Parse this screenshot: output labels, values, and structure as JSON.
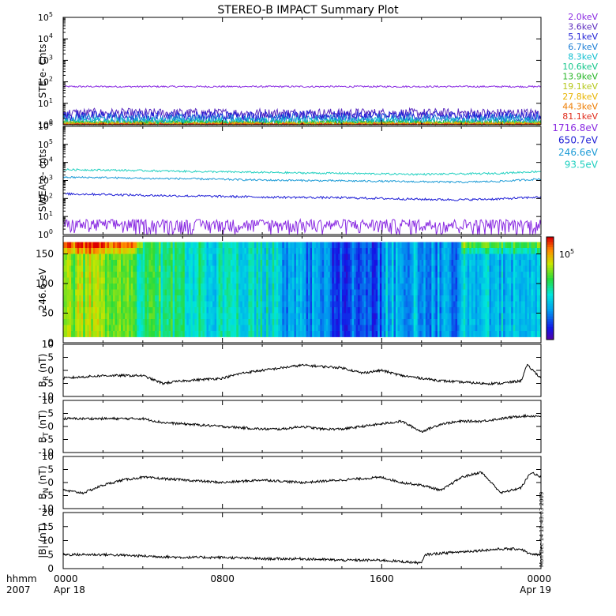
{
  "title": "STEREO-B IMPACT Summary Plot",
  "time_axis": {
    "row_label": "hhmm",
    "year": "2007",
    "ticks": [
      {
        "hour": 0,
        "hhmm": "0000",
        "date": "Apr 18"
      },
      {
        "hour": 8,
        "hhmm": "0800",
        "date": ""
      },
      {
        "hour": 16,
        "hhmm": "1600",
        "date": ""
      },
      {
        "hour": 24,
        "hhmm": "0000",
        "date": "Apr 19"
      }
    ]
  },
  "side_stamp": "Mon Dec 14 12:43:03 2009",
  "chart_data": [
    {
      "id": "ste",
      "type": "line",
      "ylabel": "STE e- Cnts",
      "yscale": "log",
      "ylim_exp": [
        0,
        5
      ],
      "ytick_exps": [
        0,
        1,
        2,
        3,
        4,
        5
      ],
      "series": [
        {
          "name": "2.0keV",
          "color": "#8a2be2",
          "level": 60,
          "noise": 0.04
        },
        {
          "name": "3.6keV",
          "color": "#5b2bbf",
          "level": 3.5,
          "noise": 0.22
        },
        {
          "name": "5.1keV",
          "color": "#1f1fd6",
          "level": 2.5,
          "noise": 0.25
        },
        {
          "name": "6.7keV",
          "color": "#1c7ed6",
          "level": 1.8,
          "noise": 0.25
        },
        {
          "name": "8.3keV",
          "color": "#10bfd0",
          "level": 1.4,
          "noise": 0.2
        },
        {
          "name": "10.6keV",
          "color": "#13c68a",
          "level": 1.2,
          "noise": 0.15
        },
        {
          "name": "13.9keV",
          "color": "#27b627",
          "level": 1.15,
          "noise": 0.12
        },
        {
          "name": "19.1keV",
          "color": "#b5c81a",
          "level": 1.1,
          "noise": 0.1
        },
        {
          "name": "27.8keV",
          "color": "#e8b400",
          "level": 1.1,
          "noise": 0.1
        },
        {
          "name": "44.3keV",
          "color": "#ee7c00",
          "level": 1.05,
          "noise": 0.08
        },
        {
          "name": "81.1keV",
          "color": "#e02a1a",
          "level": 1.02,
          "noise": 0.05
        }
      ]
    },
    {
      "id": "swea",
      "type": "line",
      "ylabel": "SWEA e- cnts",
      "yscale": "log",
      "ylim_exp": [
        0,
        6
      ],
      "ytick_exps": [
        0,
        1,
        2,
        3,
        4,
        5,
        6
      ],
      "series": [
        {
          "name": "1716.8eV",
          "color": "#8a2be2",
          "hours": [
            0,
            24
          ],
          "values": [
            2.5,
            2.5
          ],
          "noise": 0.5
        },
        {
          "name": "650.7eV",
          "color": "#1f1fd6",
          "hours": [
            0,
            2,
            4,
            6,
            8,
            10,
            12,
            14,
            16,
            18,
            20,
            22,
            24
          ],
          "values": [
            180,
            170,
            150,
            140,
            130,
            120,
            115,
            110,
            100,
            90,
            85,
            95,
            120
          ],
          "noise": 0.06
        },
        {
          "name": "246.6eV",
          "color": "#1c9bd6",
          "hours": [
            0,
            2,
            4,
            6,
            8,
            10,
            12,
            14,
            16,
            18,
            20,
            22,
            24
          ],
          "values": [
            1500,
            1450,
            1300,
            1250,
            1150,
            1050,
            1000,
            950,
            900,
            850,
            800,
            900,
            1200
          ],
          "noise": 0.05
        },
        {
          "name": "93.5eV",
          "color": "#20d0c0",
          "hours": [
            0,
            2,
            4,
            6,
            8,
            10,
            12,
            14,
            16,
            18,
            20,
            22,
            24
          ],
          "values": [
            4000,
            3800,
            3500,
            3200,
            3000,
            2800,
            2600,
            2500,
            2300,
            2200,
            2300,
            2500,
            3200
          ],
          "noise": 0.05
        }
      ]
    },
    {
      "id": "pad",
      "type": "heatmap",
      "ylabel": "246.6 eV",
      "ylim": [
        0,
        180
      ],
      "yticks": [
        0,
        50,
        100,
        150
      ],
      "colorbar_label": "10",
      "colorbar_label_exp": "5",
      "segments": [
        {
          "start": 0,
          "end": 3.5,
          "level": 0.7
        },
        {
          "start": 3.5,
          "end": 5.5,
          "level": 0.55
        },
        {
          "start": 5.5,
          "end": 7.0,
          "level": 0.5
        },
        {
          "start": 7.0,
          "end": 11.0,
          "level": 0.45
        },
        {
          "start": 11.0,
          "end": 13.5,
          "level": 0.3
        },
        {
          "start": 13.5,
          "end": 16.0,
          "level": 0.22
        },
        {
          "start": 16.0,
          "end": 18.0,
          "level": 0.35
        },
        {
          "start": 18.0,
          "end": 20.0,
          "level": 0.3
        },
        {
          "start": 20.0,
          "end": 24.0,
          "level": 0.38
        }
      ]
    },
    {
      "id": "br",
      "type": "line",
      "ylabel": "B",
      "ylabel_sub": "R",
      "ylabel_unit": " (nT)",
      "ylim": [
        -10,
        10
      ],
      "yticks": [
        -10,
        -5,
        0,
        5,
        10
      ],
      "color": "#000000",
      "hours": [
        0,
        2,
        4,
        5,
        6,
        8,
        9,
        10,
        11,
        12,
        13,
        14,
        15,
        16,
        17,
        18,
        19,
        20,
        21,
        22,
        23,
        23.3,
        23.6,
        24
      ],
      "values": [
        -3,
        -2,
        -2,
        -5,
        -4,
        -3,
        -1,
        0,
        1,
        2,
        1.5,
        1,
        -1,
        0,
        -2,
        -3,
        -4,
        -4.5,
        -5,
        -5,
        -4,
        2,
        0,
        -3
      ]
    },
    {
      "id": "bt",
      "type": "line",
      "ylabel": "B",
      "ylabel_sub": "T",
      "ylabel_unit": " (nT)",
      "ylim": [
        -10,
        10
      ],
      "yticks": [
        -10,
        -5,
        0,
        5,
        10
      ],
      "color": "#000000",
      "hours": [
        0,
        2,
        4,
        5,
        6,
        8,
        10,
        11,
        12,
        13,
        14,
        15,
        16,
        17,
        18,
        19,
        20,
        21,
        22,
        23,
        24
      ],
      "values": [
        3,
        3,
        3,
        1.5,
        1,
        0,
        -1,
        -1,
        0,
        -1,
        -1,
        0,
        1,
        2,
        -2,
        1,
        2,
        2,
        3,
        4,
        4
      ]
    },
    {
      "id": "bn",
      "type": "line",
      "ylabel": "B",
      "ylabel_sub": "N",
      "ylabel_unit": " (nT)",
      "ylim": [
        -10,
        10
      ],
      "yticks": [
        -10,
        -5,
        0,
        5,
        10
      ],
      "color": "#000000",
      "hours": [
        0,
        1,
        2,
        3,
        4,
        6,
        8,
        10,
        12,
        14,
        16,
        17,
        18,
        19,
        20,
        21,
        21.5,
        22,
        23,
        23.5,
        24
      ],
      "values": [
        -3,
        -4,
        -1,
        1,
        2,
        1,
        0,
        1,
        0,
        1,
        2,
        0,
        -1,
        -3,
        2,
        4,
        0,
        -4,
        -2,
        4,
        2
      ]
    },
    {
      "id": "bmag",
      "type": "line",
      "ylabel": "|B| (nT)",
      "ylim": [
        0,
        20
      ],
      "yticks": [
        0,
        5,
        10,
        15,
        20
      ],
      "color": "#000000",
      "hours": [
        0,
        2,
        4,
        6,
        8,
        10,
        12,
        14,
        16,
        17,
        18,
        18.2,
        19,
        20,
        21,
        22,
        23,
        23.5,
        24
      ],
      "values": [
        5,
        5,
        4.5,
        4,
        4,
        3.5,
        3.5,
        3,
        3,
        2.5,
        2,
        5,
        5.5,
        6,
        6.5,
        7,
        7,
        5,
        5
      ]
    }
  ]
}
